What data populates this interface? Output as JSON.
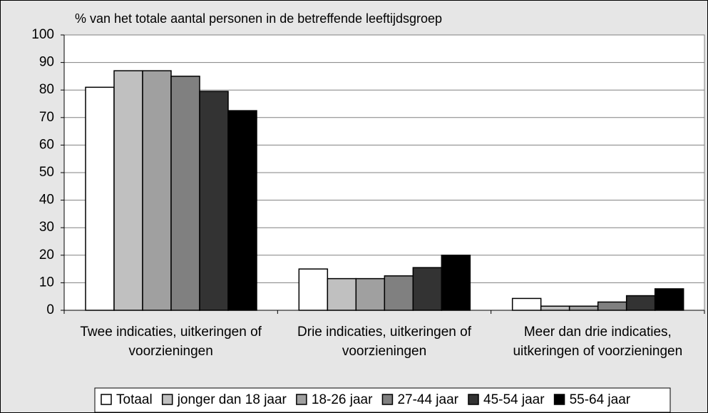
{
  "chart_data": {
    "type": "bar",
    "title": "% van het totale aantal personen in de betreffende leeftijdsgroep",
    "categories": [
      "Twee indicaties, uitkeringen of voorzieningen",
      "Drie indicaties, uitkeringen of voorzieningen",
      "Meer dan drie indicaties, uitkeringen of voorzieningen"
    ],
    "series": [
      {
        "name": "Totaal",
        "color": "#ffffff",
        "values": [
          81,
          15,
          4.3
        ]
      },
      {
        "name": "jonger dan 18 jaar",
        "color": "#c0c0c0",
        "values": [
          87,
          11.5,
          1.5
        ]
      },
      {
        "name": "18-26 jaar",
        "color": "#a0a0a0",
        "values": [
          87,
          11.5,
          1.5
        ]
      },
      {
        "name": "27-44 jaar",
        "color": "#808080",
        "values": [
          85,
          12.5,
          3
        ]
      },
      {
        "name": "45-54 jaar",
        "color": "#333333",
        "values": [
          79.5,
          15.5,
          5.3
        ]
      },
      {
        "name": "55-64 jaar",
        "color": "#000000",
        "values": [
          72.5,
          20,
          7.8
        ]
      }
    ],
    "ylim": [
      0,
      100
    ],
    "yticks": [
      0,
      10,
      20,
      30,
      40,
      50,
      60,
      70,
      80,
      90,
      100
    ],
    "grid": true,
    "legend": "bottom"
  }
}
